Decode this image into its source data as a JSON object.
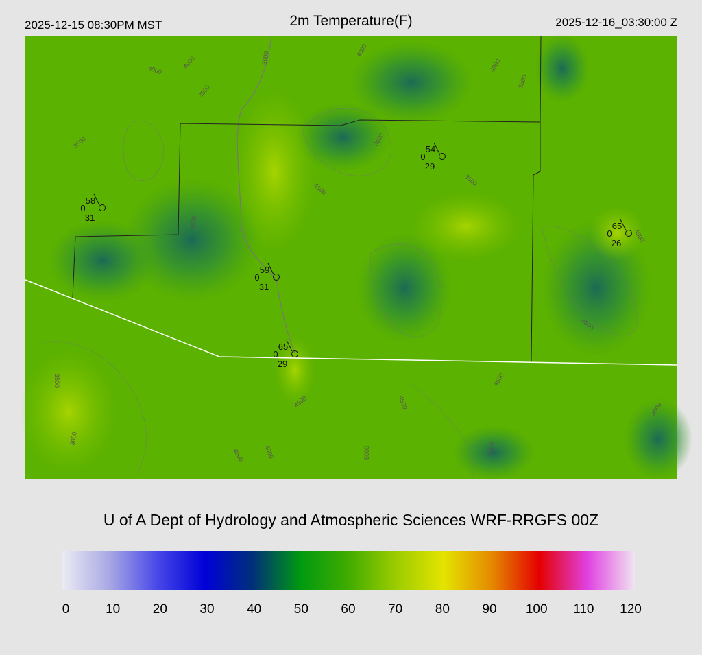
{
  "header": {
    "left": "2025-12-15 08:30PM MST",
    "title": "2m Temperature(F)",
    "right": "2025-12-16_03:30:00 Z"
  },
  "stations": [
    {
      "temp": 58,
      "wind": 0,
      "dewpoint": 31
    },
    {
      "temp": 54,
      "wind": 0,
      "dewpoint": 29
    },
    {
      "temp": 65,
      "wind": 0,
      "dewpoint": 26
    },
    {
      "temp": 59,
      "wind": 0,
      "dewpoint": 31
    },
    {
      "temp": 65,
      "wind": 0,
      "dewpoint": 29
    }
  ],
  "contour_labels": [
    "3000",
    "4000",
    "4000",
    "4000",
    "3500",
    "3500",
    "4500",
    "4500",
    "3500",
    "4000",
    "3500",
    "3500",
    "4500",
    "4500",
    "3500",
    "3000",
    "4500",
    "4500",
    "4000",
    "4000",
    "5000",
    "4500",
    "4500",
    "4500"
  ],
  "footer": "U of A Dept of Hydrology and Atmospheric Sciences WRF-RRGFS 00Z",
  "colorbar": {
    "ticks": [
      0,
      10,
      20,
      30,
      40,
      50,
      60,
      70,
      80,
      90,
      100,
      110,
      120
    ],
    "colors": [
      "#ececf4",
      "#a8a8e4",
      "#4848e8",
      "#0000d8",
      "#00307a",
      "#009a10",
      "#40ac00",
      "#9ccc00",
      "#e4e400",
      "#e48a00",
      "#e40000",
      "#e040e0",
      "#f0e4f0"
    ]
  }
}
